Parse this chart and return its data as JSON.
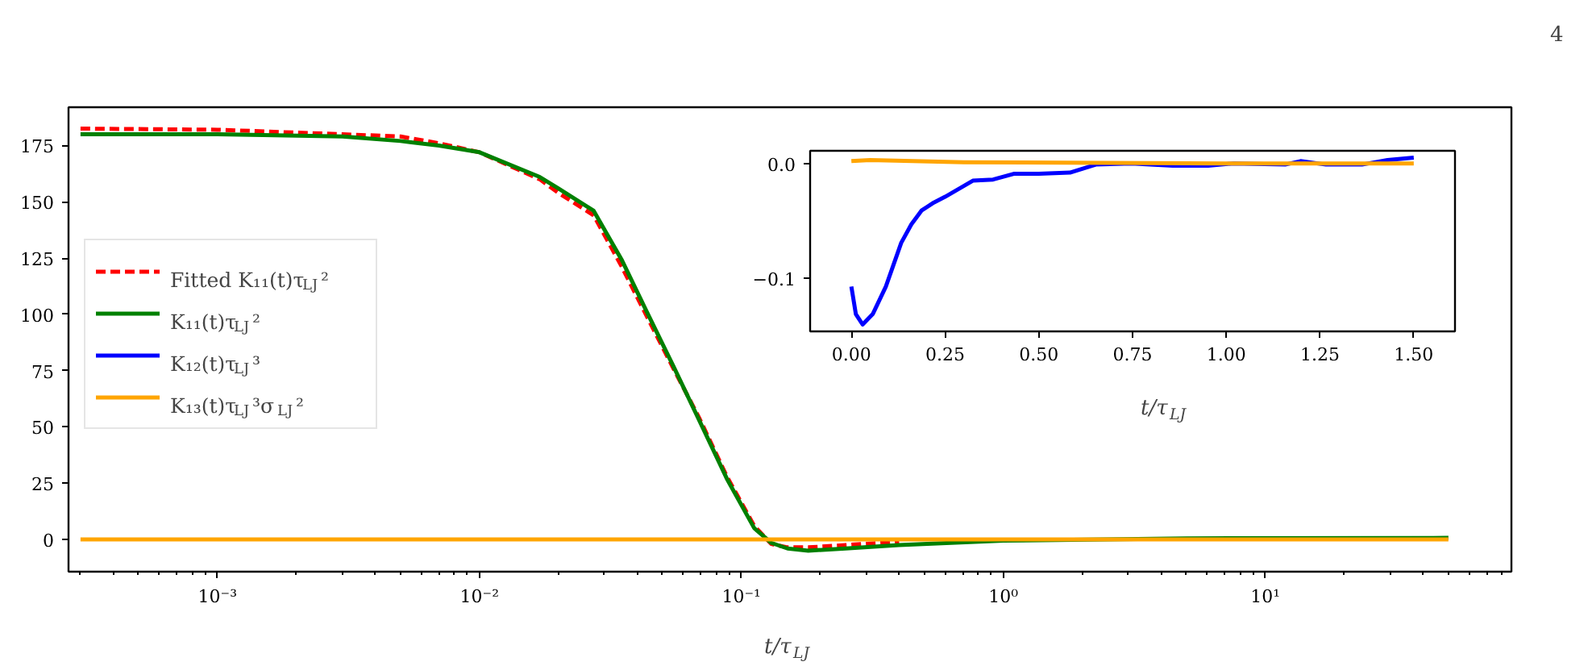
{
  "chart_data": [
    {
      "type": "line",
      "xlabel": "t/τ$_{LJ}$",
      "log": "x",
      "legend": "left",
      "annotations": [
        "4"
      ],
      "xlim": [
        0.00027,
        87
      ],
      "ylim": [
        -14.3,
        192
      ],
      "xticks": [
        {
          "value": 0.001,
          "label": "10⁻³"
        },
        {
          "value": 0.01,
          "label": "10⁻²"
        },
        {
          "value": 0.1,
          "label": "10⁻¹"
        },
        {
          "value": 1,
          "label": "10⁰"
        },
        {
          "value": 10,
          "label": "10¹"
        }
      ],
      "yticks": [
        0,
        25,
        50,
        75,
        100,
        125,
        150,
        175
      ],
      "series": [
        {
          "name": "Fitted K₁₁(t)τ$_{LJ}$²",
          "color": "#ff0000",
          "line_style": "dashed",
          "x": [
            0.0003,
            0.001,
            0.003,
            0.005,
            0.007,
            0.01,
            0.017,
            0.02,
            0.0273,
            0.035,
            0.0436,
            0.055,
            0.069,
            0.088,
            0.112,
            0.13,
            0.15,
            0.18,
            0.25,
            0.4
          ],
          "values": [
            182.5,
            182,
            180,
            179,
            176,
            172,
            160,
            154,
            144,
            121,
            99,
            76,
            54,
            28,
            6,
            -2,
            -3.5,
            -3.5,
            -2.5,
            -1
          ]
        },
        {
          "name": "K₁₁(t)τ$_{LJ}$²",
          "color": "#008000",
          "x": [
            0.0003,
            0.001,
            0.003,
            0.005,
            0.007,
            0.01,
            0.017,
            0.02,
            0.0273,
            0.035,
            0.0436,
            0.055,
            0.069,
            0.088,
            0.112,
            0.13,
            0.15,
            0.18,
            0.25,
            0.4,
            1,
            5,
            50
          ],
          "values": [
            180,
            180,
            179,
            177,
            175,
            172,
            161,
            156,
            146,
            124,
            101,
            77,
            53,
            27,
            5,
            -1.5,
            -4,
            -5,
            -4,
            -2.5,
            -0.5,
            0.5,
            0.7
          ]
        },
        {
          "name": "K₁₂(t)τ$_{LJ}$³",
          "color": "#0000ff"
        },
        {
          "name": "K₁₃(t)τ$_{LJ}$³σ$_{LJ}$²",
          "color": "#ffa500",
          "x": [
            0.0003,
            50
          ],
          "values": [
            0,
            0
          ]
        }
      ]
    },
    {
      "type": "line",
      "xlabel": "t/τ$_{LJ}$",
      "xlim": [
        -0.11,
        1.61
      ],
      "ylim": [
        -0.146,
        0.011
      ],
      "xticks": [
        {
          "value": 0,
          "label": "0.00"
        },
        {
          "value": 0.25,
          "label": "0.25"
        },
        {
          "value": 0.5,
          "label": "0.50"
        },
        {
          "value": 0.75,
          "label": "0.75"
        },
        {
          "value": 1,
          "label": "1.00"
        },
        {
          "value": 1.25,
          "label": "1.25"
        },
        {
          "value": 1.5,
          "label": "1.50"
        }
      ],
      "yticks": [
        {
          "value": -0.1,
          "label": "−0.1"
        },
        {
          "value": 0,
          "label": "0.0"
        }
      ],
      "series": [
        {
          "color": "#0000ff",
          "x": [
            0,
            0.012,
            0.03,
            0.057,
            0.092,
            0.133,
            0.16,
            0.187,
            0.22,
            0.25,
            0.324,
            0.378,
            0.433,
            0.5,
            0.583,
            0.652,
            0.747,
            0.857,
            0.952,
            1.02,
            1.157,
            1.198,
            1.266,
            1.362,
            1.43,
            1.5
          ],
          "values": [
            -0.107,
            -0.131,
            -0.14,
            -0.131,
            -0.107,
            -0.069,
            -0.053,
            -0.041,
            -0.034,
            -0.029,
            -0.015,
            -0.014,
            -0.009,
            -0.009,
            -0.008,
            -0.001,
            0,
            -0.002,
            -0.002,
            0,
            -0.001,
            0.002,
            -0.001,
            -0.001,
            0.003,
            0.005
          ]
        },
        {
          "color": "#ffa500",
          "x": [
            0,
            0.05,
            0.3,
            1,
            1.5
          ],
          "values": [
            0.002,
            0.003,
            0.001,
            0,
            0
          ]
        }
      ]
    }
  ]
}
